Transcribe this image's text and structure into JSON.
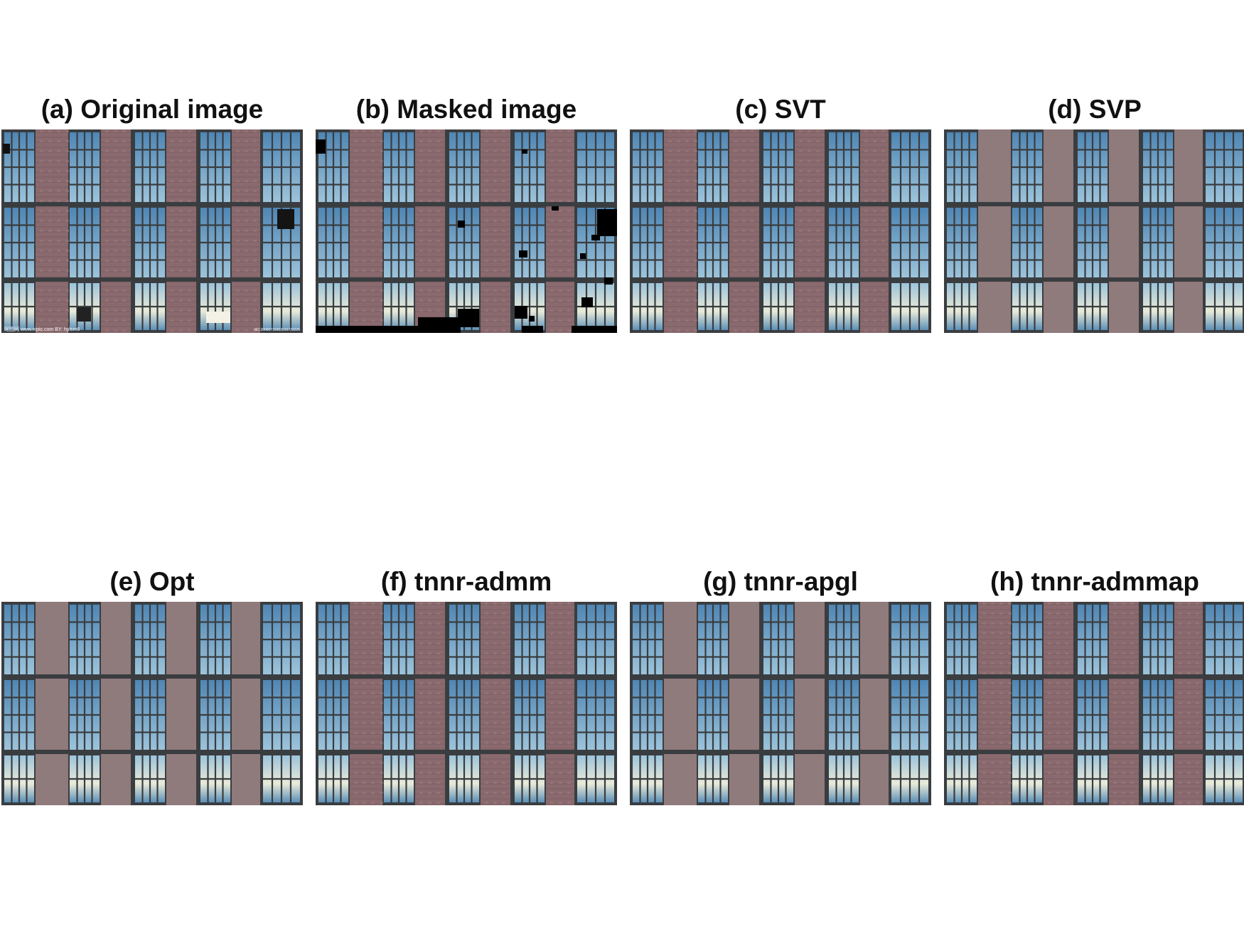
{
  "figure": {
    "panels": [
      {
        "title": "(a) Original image",
        "style": "sharp",
        "mask": false,
        "watermark": "昵图网 www.nipic.com   BY: hylsm6",
        "watermark_right": "NO.20080716003015733225"
      },
      {
        "title": "(b) Masked image",
        "style": "sharp",
        "mask": true
      },
      {
        "title": "(c) SVT",
        "style": "sharp",
        "mask": false
      },
      {
        "title": "(d) SVP",
        "style": "smooth",
        "mask": false
      },
      {
        "title": "(e) Opt",
        "style": "smooth",
        "mask": false
      },
      {
        "title": "(f) tnnr-admm",
        "style": "sharp",
        "mask": false
      },
      {
        "title": "(g) tnnr-apgl",
        "style": "smooth",
        "mask": false
      },
      {
        "title": "(h) tnnr-admmap",
        "style": "sharp",
        "mask": false
      }
    ]
  },
  "colors": {
    "frame": "#3a3d40",
    "brick": "#8a6a6e",
    "brick_smooth": "#8f7a7c",
    "glass_top": "#4f86b4",
    "glass_bottom": "#9cc3da",
    "sky_light": "#e9ead8",
    "mask": "#000000"
  }
}
